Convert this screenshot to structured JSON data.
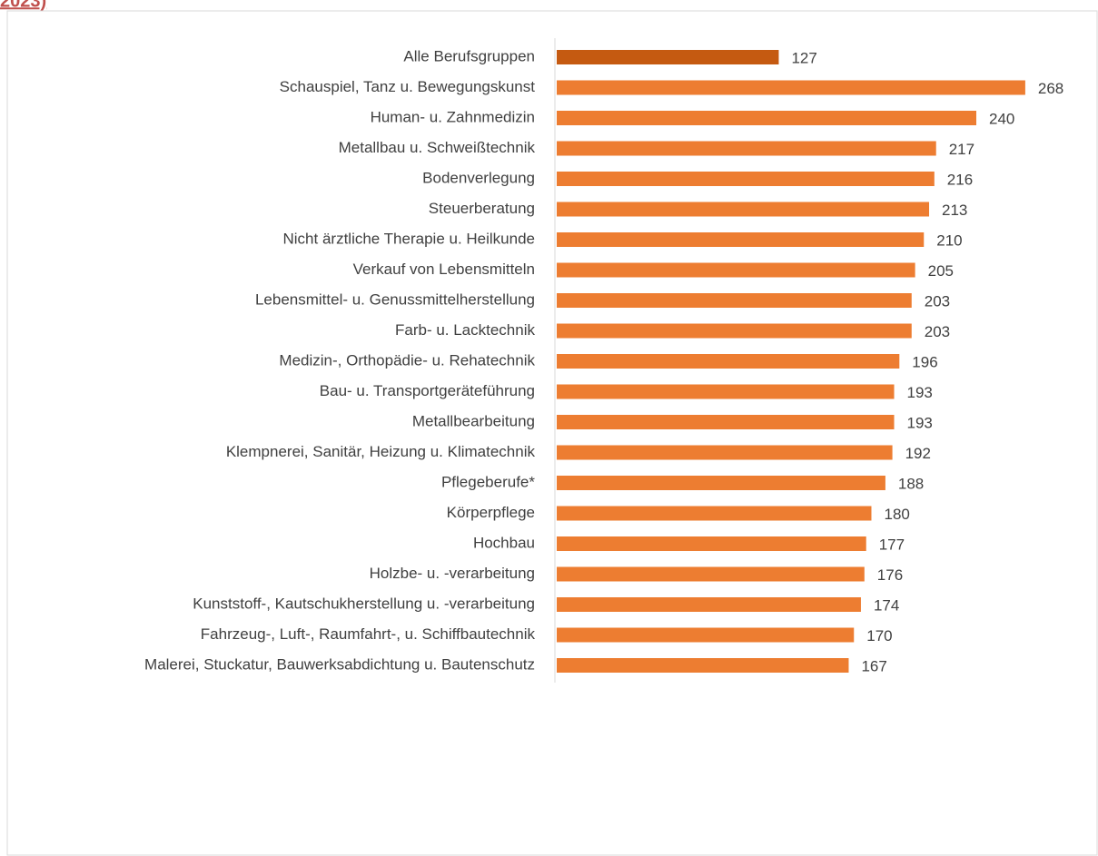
{
  "chart_data": {
    "type": "bar",
    "orientation": "horizontal",
    "title": "2023)",
    "categories": [
      "Alle Berufsgruppen",
      "Schauspiel, Tanz u. Bewegungskunst",
      "Human- u. Zahnmedizin",
      "Metallbau u. Schweißtechnik",
      "Bodenverlegung",
      "Steuerberatung",
      "Nicht ärztliche Therapie u. Heilkunde",
      "Verkauf von Lebensmitteln",
      "Lebensmittel- u. Genussmittelherstellung",
      "Farb- u. Lacktechnik",
      "Medizin-, Orthopädie- u. Rehatechnik",
      "Bau- u. Transportgeräteführung",
      "Metallbearbeitung",
      "Klempnerei, Sanitär, Heizung u. Klimatechnik",
      "Pflegeberufe*",
      "Körperpflege",
      "Hochbau",
      "Holzbe- u. -verarbeitung",
      "Kunststoff-, Kautschukherstellung u. -verarbeitung",
      "Fahrzeug-, Luft-, Raumfahrt-, u. Schiffbautechnik",
      "Malerei, Stuckatur, Bauwerksabdichtung u. Bautenschutz"
    ],
    "values": [
      127,
      268,
      240,
      217,
      216,
      213,
      210,
      205,
      203,
      203,
      196,
      193,
      193,
      192,
      188,
      180,
      177,
      176,
      174,
      170,
      167
    ],
    "colors": [
      "#c55a11",
      "#ed7d31",
      "#ed7d31",
      "#ed7d31",
      "#ed7d31",
      "#ed7d31",
      "#ed7d31",
      "#ed7d31",
      "#ed7d31",
      "#ed7d31",
      "#ed7d31",
      "#ed7d31",
      "#ed7d31",
      "#ed7d31",
      "#ed7d31",
      "#ed7d31",
      "#ed7d31",
      "#ed7d31",
      "#ed7d31",
      "#ed7d31",
      "#ed7d31"
    ]
  }
}
